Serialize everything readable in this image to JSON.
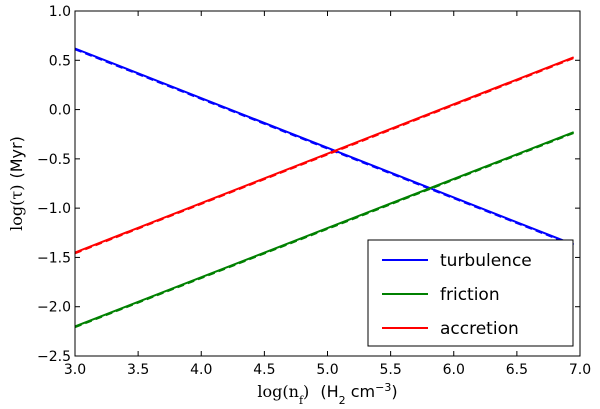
{
  "chart_data": {
    "type": "line",
    "title": "",
    "xlabel": {
      "math": "log(n",
      "sub": "f",
      "close": ")",
      "unit_open": "(H",
      "unit_sub": "2",
      "unit_mid": " cm",
      "unit_sup": "−3",
      "unit_close": ")"
    },
    "ylabel": {
      "math": "log(τ)",
      "unit": "(Myr)"
    },
    "xlim": [
      3.0,
      7.0
    ],
    "ylim": [
      -2.5,
      1.0
    ],
    "xticks": [
      3.0,
      3.5,
      4.0,
      4.5,
      5.0,
      5.5,
      6.0,
      6.5,
      7.0
    ],
    "xtick_labels": [
      "3.0",
      "3.5",
      "4.0",
      "4.5",
      "5.0",
      "5.5",
      "6.0",
      "6.5",
      "7.0"
    ],
    "yticks": [
      -2.5,
      -2.0,
      -1.5,
      -1.0,
      -0.5,
      0.0,
      0.5,
      1.0
    ],
    "ytick_labels": [
      "−2.5",
      "−2.0",
      "−1.5",
      "−1.0",
      "−0.5",
      "0.0",
      "0.5",
      "1.0"
    ],
    "grid": false,
    "legend_position": "lower-right",
    "series": [
      {
        "name": "turbulence",
        "color": "#0000ff",
        "x": [
          3.0,
          6.95
        ],
        "y": [
          0.62,
          -1.37
        ]
      },
      {
        "name": "friction",
        "color": "#008000",
        "x": [
          3.0,
          6.95
        ],
        "y": [
          -2.2,
          -0.23
        ]
      },
      {
        "name": "accretion",
        "color": "#ff0000",
        "x": [
          3.0,
          6.95
        ],
        "y": [
          -1.45,
          0.53
        ]
      }
    ]
  }
}
